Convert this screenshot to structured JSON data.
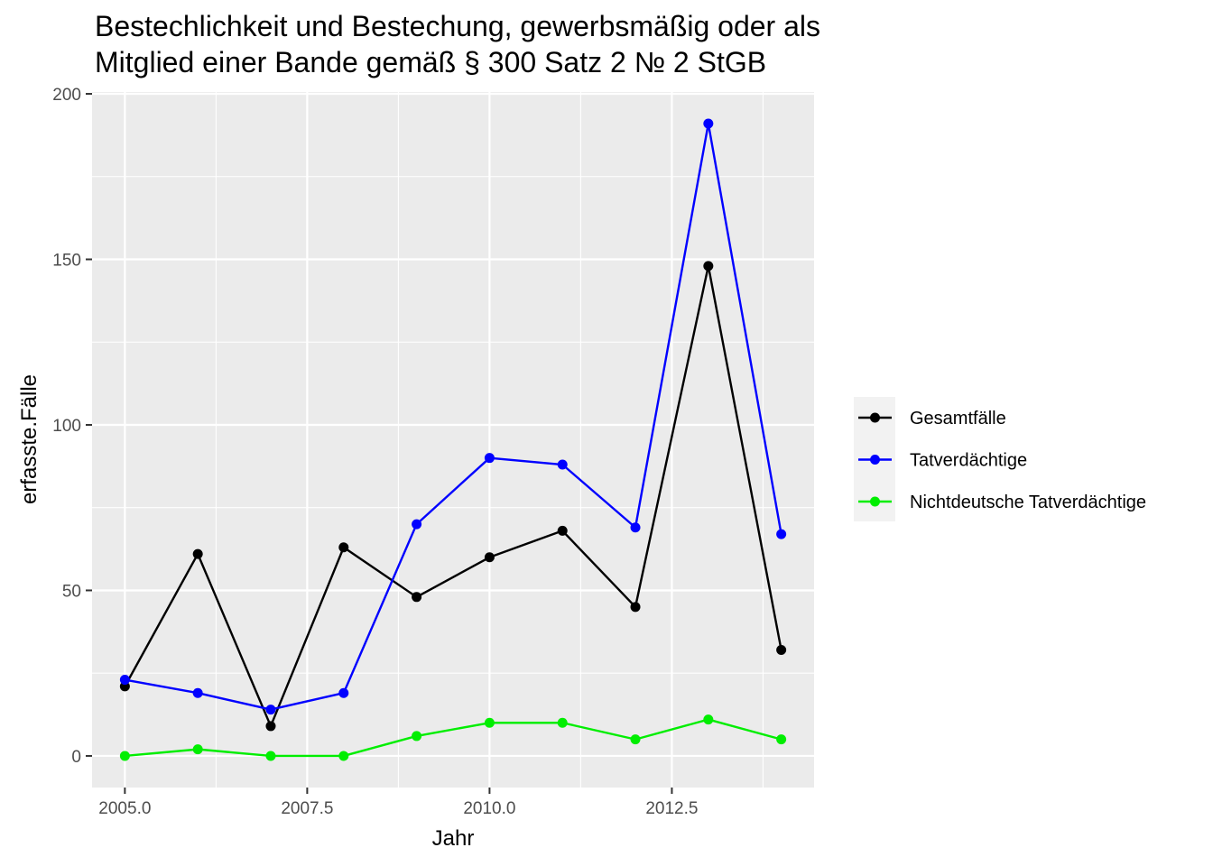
{
  "chart_data": {
    "type": "line",
    "title_lines": [
      "Bestechlichkeit und Bestechung, gewerbsmäßig oder als",
      "Mitglied einer Bande gemäß § 300 Satz 2 № 2 StGB"
    ],
    "xlabel": "Jahr",
    "ylabel": "erfasste.Fälle",
    "xlim": [
      2004.55,
      2014.45
    ],
    "ylim": [
      -9.55,
      200.55
    ],
    "x_ticks": [
      2005.0,
      2007.5,
      2010.0,
      2012.5
    ],
    "x_tick_labels": [
      "2005.0",
      "2007.5",
      "2010.0",
      "2012.5"
    ],
    "x_minor_ticks": [
      2006.25,
      2008.75,
      2011.25,
      2013.75
    ],
    "y_ticks": [
      0,
      50,
      100,
      150,
      200
    ],
    "y_tick_labels": [
      "0",
      "50",
      "100",
      "150",
      "200"
    ],
    "y_minor_ticks": [
      25,
      75,
      125,
      175
    ],
    "x": [
      2005,
      2006,
      2007,
      2008,
      2009,
      2010,
      2011,
      2012,
      2013,
      2014
    ],
    "series": [
      {
        "name": "Gesamtfälle",
        "color": "#000000",
        "values": [
          21,
          61,
          9,
          63,
          48,
          60,
          68,
          45,
          148,
          32
        ]
      },
      {
        "name": "Tatverdächtige",
        "color": "#0000ff",
        "values": [
          23,
          19,
          14,
          19,
          70,
          90,
          88,
          69,
          191,
          67
        ]
      },
      {
        "name": "Nichtdeutsche Tatverdächtige",
        "color": "#00ee00",
        "values": [
          0,
          2,
          0,
          0,
          6,
          10,
          10,
          5,
          11,
          5
        ]
      }
    ],
    "grid": true,
    "legend_position": "right"
  }
}
